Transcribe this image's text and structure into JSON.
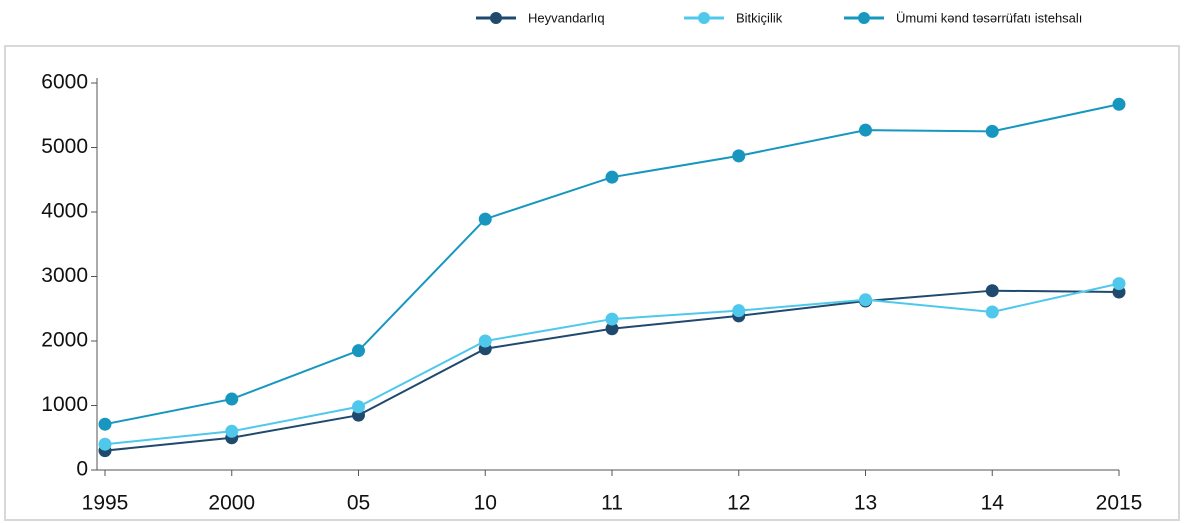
{
  "chart_data": {
    "type": "line",
    "categories": [
      "1995",
      "2000",
      "05",
      "10",
      "11",
      "12",
      "13",
      "14",
      "2015"
    ],
    "series": [
      {
        "name": "Heyvandarlıq",
        "color": "#1f4a6e",
        "values": [
          300,
          500,
          850,
          1880,
          2190,
          2390,
          2620,
          2780,
          2760
        ]
      },
      {
        "name": "Bitkiçilik",
        "color": "#4fc8ec",
        "values": [
          400,
          600,
          980,
          2000,
          2340,
          2470,
          2640,
          2450,
          2890
        ]
      },
      {
        "name": "Ümumi kənd təsərrüfatı istehsalı",
        "color": "#1797c0",
        "values": [
          710,
          1100,
          1850,
          3890,
          4540,
          4870,
          5270,
          5250,
          5670
        ]
      }
    ],
    "ylim": [
      0,
      6000
    ],
    "yticks": [
      0,
      1000,
      2000,
      3000,
      4000,
      5000,
      6000
    ]
  }
}
